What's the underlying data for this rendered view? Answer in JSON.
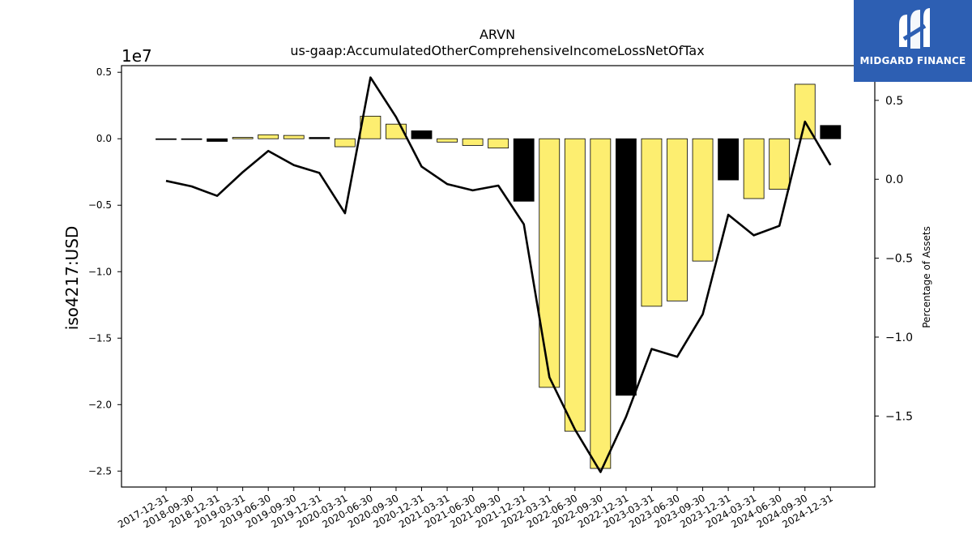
{
  "chart_data": {
    "type": "bar+line",
    "title": "ARVN",
    "subtitle": "us-gaap:AccumulatedOtherComprehensiveIncomeLossNetOfTax",
    "ylabel": "iso4217:USD",
    "y2label": "Percentage of Assets",
    "y_offset_text": "1e7",
    "ylim": [
      -26200000.0,
      5500000.0
    ],
    "y2lim": [
      -1.95,
      0.72
    ],
    "yticks": [
      0.5,
      0.0,
      -0.5,
      -1.0,
      -1.5,
      -2.0,
      -2.5
    ],
    "yticklabels": [
      "0.5",
      "0.0",
      "−0.5",
      "−1.0",
      "−1.5",
      "−2.0",
      "−2.5"
    ],
    "y2ticks": [
      0.5,
      0.0,
      -0.5,
      -1.0,
      -1.5
    ],
    "y2ticklabels": [
      "0.5",
      "0.0",
      "−0.5",
      "−1.0",
      "−1.5"
    ],
    "categories": [
      "2017-12-31",
      "2018-09-30",
      "2018-12-31",
      "2019-03-31",
      "2019-06-30",
      "2019-09-30",
      "2019-12-31",
      "2020-03-31",
      "2020-06-30",
      "2020-09-30",
      "2020-12-31",
      "2021-03-31",
      "2021-06-30",
      "2021-09-30",
      "2021-12-31",
      "2022-03-31",
      "2022-06-30",
      "2022-09-30",
      "2022-12-31",
      "2023-03-31",
      "2023-06-30",
      "2023-09-30",
      "2023-12-31",
      "2024-03-31",
      "2024-06-30",
      "2024-09-30",
      "2024-12-31"
    ],
    "values": [
      -20000,
      -40000,
      -200000,
      100000,
      300000,
      250000,
      100000,
      -600000,
      1700000,
      1100000,
      600000,
      -250000,
      -500000,
      -700000,
      -4700000,
      -18700000,
      -22000000,
      -24800000,
      -19300000,
      -12600000,
      -12200000,
      -9200000,
      -3100000,
      -4500000,
      -3800000,
      4100000,
      1000000
    ],
    "bar_colors": [
      "#000000",
      "#000000",
      "#000000",
      "#fdee70",
      "#fdee70",
      "#fdee70",
      "#000000",
      "#fdee70",
      "#fdee70",
      "#fdee70",
      "#000000",
      "#fdee70",
      "#fdee70",
      "#fdee70",
      "#000000",
      "#fdee70",
      "#fdee70",
      "#fdee70",
      "#000000",
      "#fdee70",
      "#fdee70",
      "#fdee70",
      "#000000",
      "#fdee70",
      "#fdee70",
      "#fdee70",
      "#000000"
    ],
    "line_values": [
      -0.01,
      -0.045,
      -0.105,
      0.045,
      0.18,
      0.09,
      0.04,
      -0.215,
      0.645,
      0.395,
      0.08,
      -0.03,
      -0.07,
      -0.04,
      -0.285,
      -1.255,
      -1.585,
      -1.855,
      -1.505,
      -1.075,
      -1.125,
      -0.855,
      -0.225,
      -0.355,
      -0.295,
      0.365,
      0.09
    ],
    "line_color": "#000000",
    "grid": false,
    "legend": "none"
  },
  "logo": {
    "text": "MIDGARD FINANCE",
    "background": "#2d5fb3",
    "icon": "midgard-logo-icon"
  }
}
